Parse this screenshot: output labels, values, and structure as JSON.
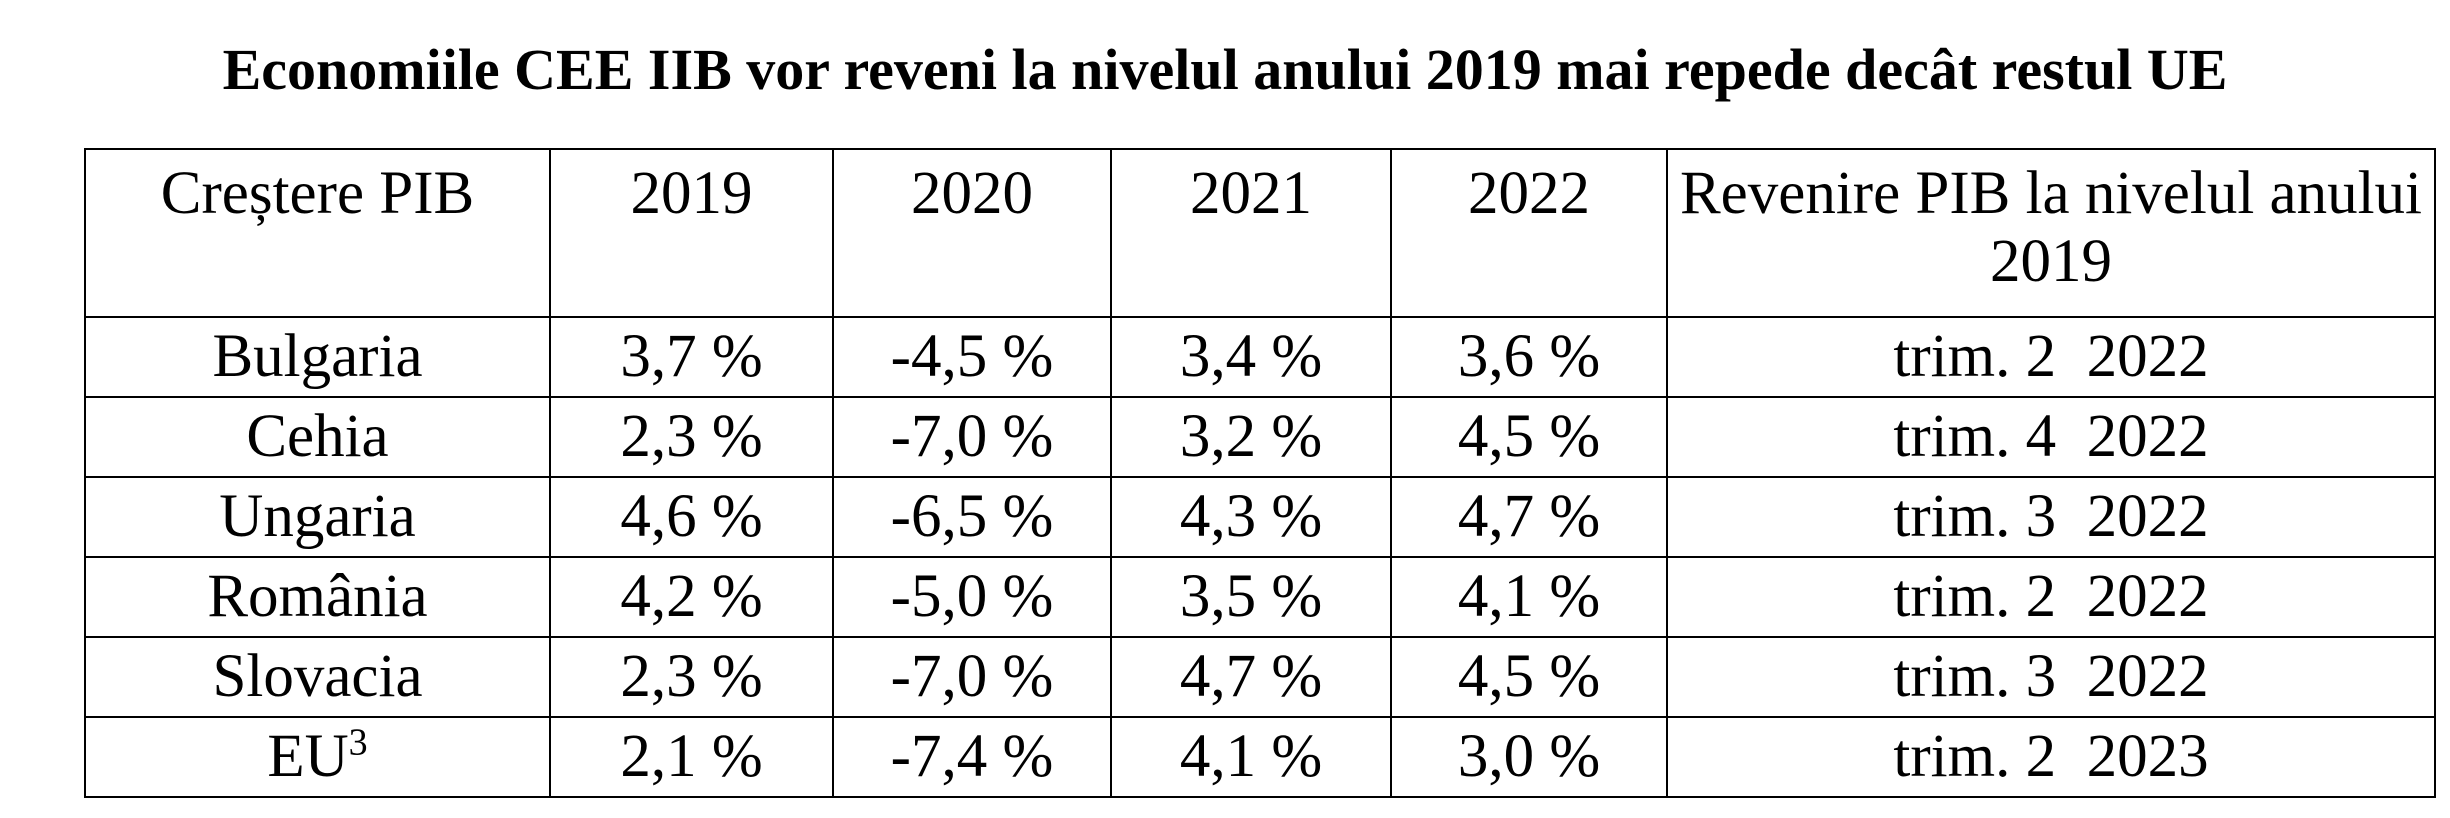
{
  "title": "Economiile CEE IIB vor reveni la nivelul anului 2019 mai repede decât restul UE",
  "table": {
    "headers": [
      "Creștere PIB",
      "2019",
      "2020",
      "2021",
      "2022",
      "Revenire PIB la nivelul anului 2019"
    ],
    "rows": [
      {
        "country": "Bulgaria",
        "country_sup": "",
        "values": [
          "3,7 %",
          "-4,5 %",
          "3,4 %",
          "3,6 %"
        ],
        "recovery": "trim. 2  2022"
      },
      {
        "country": "Cehia",
        "country_sup": "",
        "values": [
          "2,3 %",
          "-7,0 %",
          "3,2 %",
          "4,5 %"
        ],
        "recovery": "trim. 4  2022"
      },
      {
        "country": "Ungaria",
        "country_sup": "",
        "values": [
          "4,6 %",
          "-6,5 %",
          "4,3 %",
          "4,7 %"
        ],
        "recovery": "trim. 3  2022"
      },
      {
        "country": "România",
        "country_sup": "",
        "values": [
          "4,2 %",
          "-5,0 %",
          "3,5 %",
          "4,1 %"
        ],
        "recovery": "trim. 2  2022"
      },
      {
        "country": "Slovacia",
        "country_sup": "",
        "values": [
          "2,3 %",
          "-7,0 %",
          "4,7 %",
          "4,5 %"
        ],
        "recovery": "trim. 3  2022"
      },
      {
        "country": "EU",
        "country_sup": "3",
        "values": [
          "2,1 %",
          "-7,4 %",
          "4,1 %",
          "3,0 %"
        ],
        "recovery": "trim. 2  2023"
      }
    ]
  }
}
